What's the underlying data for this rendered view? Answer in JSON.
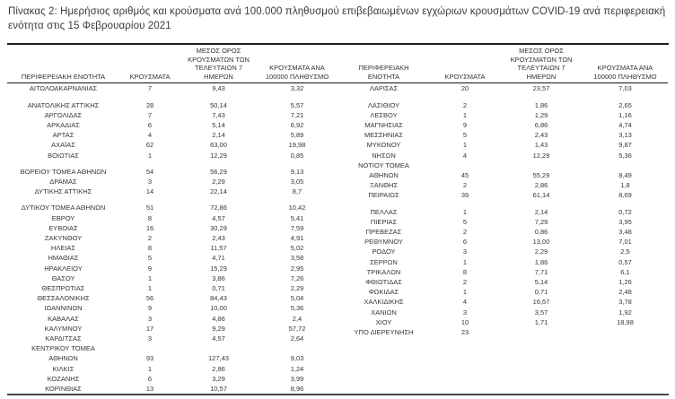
{
  "title": "Πίνακας 2: Ημερήσιος αριθμός και κρούσματα ανά 100.000 πληθυσμού επιβεβαιωμένων εγχώριων κρουσμάτων COVID-19 ανά περιφερειακή ενότητα στις 15 Φεβρουαρίου 2021",
  "colors": {
    "text": "#303030",
    "top_border": "#1d1d1d",
    "header_rule": "#141414",
    "bottom_border": "#474747",
    "background": "#ffffff"
  },
  "tables": [
    {
      "headers": {
        "region": "ΠΕΡΙΦΕΡΕΙΑΚΗ ΕΝΟΤΗΤΑ",
        "cases": "ΚΡΟΥΣΜΑΤΑ",
        "avg7": "ΜΕΣΟΣ ΟΡΟΣ\nΚΡΟΥΣΜΑΤΩΝ ΤΩΝ\nΤΕΛΕΥΤΑΙΩΝ 7\nΗΜΕΡΩΝ",
        "per100k": "ΚΡΟΥΣΜΑΤΑ ΑΝΑ\n100000 ΠΛΗΘΥΣΜΟ"
      },
      "rows": [
        {
          "region": "ΑΙΤΩΛΟΑΚΑΡΝΑΝΙΑΣ",
          "cases": "7",
          "avg7": "9,43",
          "per100k": "3,32"
        },
        {
          "region": "ΑΝΑΤΟΛΙΚΗΣ ΑΤΤΙΚΗΣ",
          "cases": "28",
          "avg7": "50,14",
          "per100k": "5,57",
          "gap_before": true
        },
        {
          "region": "ΑΡΓΟΛΙΔΑΣ",
          "cases": "7",
          "avg7": "7,43",
          "per100k": "7,21"
        },
        {
          "region": "ΑΡΚΑΔΙΑΣ",
          "cases": "6",
          "avg7": "5,14",
          "per100k": "6,92"
        },
        {
          "region": "ΑΡΤΑΣ",
          "cases": "4",
          "avg7": "2,14",
          "per100k": "5,89"
        },
        {
          "region": "ΑΧΑΪΑΣ",
          "cases": "62",
          "avg7": "63,00",
          "per100k": "19,98"
        },
        {
          "region": "ΒΟΙΩΤΙΑΣ",
          "cases": "1",
          "avg7": "12,29",
          "per100k": "0,85"
        },
        {
          "region": "ΒΟΡΕΙΟΥ ΤΟΜΕΑ ΑΘΗΝΩΝ",
          "cases": "54",
          "avg7": "56,29",
          "per100k": "9,13",
          "gap_before": true
        },
        {
          "region": "ΔΡΑΜΑΣ",
          "cases": "3",
          "avg7": "2,29",
          "per100k": "3,05"
        },
        {
          "region": "ΔΥΤΙΚΗΣ ΑΤΤΙΚΗΣ",
          "cases": "14",
          "avg7": "22,14",
          "per100k": "8,7"
        },
        {
          "region": "ΔΥΤΙΚΟΥ ΤΟΜΕΑ ΑΘΗΝΩΝ",
          "cases": "51",
          "avg7": "72,86",
          "per100k": "10,42",
          "gap_before": true
        },
        {
          "region": "ΕΒΡΟΥ",
          "cases": "8",
          "avg7": "4,57",
          "per100k": "5,41"
        },
        {
          "region": "ΕΥΒΟΙΑΣ",
          "cases": "16",
          "avg7": "30,29",
          "per100k": "7,59"
        },
        {
          "region": "ΖΑΚΥΝΘΟΥ",
          "cases": "2",
          "avg7": "2,43",
          "per100k": "4,91"
        },
        {
          "region": "ΗΛΕΙΑΣ",
          "cases": "8",
          "avg7": "11,57",
          "per100k": "5,02"
        },
        {
          "region": "ΗΜΑΘΙΑΣ",
          "cases": "5",
          "avg7": "4,71",
          "per100k": "3,58"
        },
        {
          "region": "ΗΡΑΚΛΕΙΟΥ",
          "cases": "9",
          "avg7": "15,29",
          "per100k": "2,95"
        },
        {
          "region": "ΘΑΣΟΥ",
          "cases": "1",
          "avg7": "3,86",
          "per100k": "7,26"
        },
        {
          "region": "ΘΕΣΠΡΩΤΙΑΣ",
          "cases": "1",
          "avg7": "0,71",
          "per100k": "2,29"
        },
        {
          "region": "ΘΕΣΣΑΛΟΝΙΚΗΣ",
          "cases": "56",
          "avg7": "84,43",
          "per100k": "5,04"
        },
        {
          "region": "ΙΩΑΝΝΙΝΩΝ",
          "cases": "9",
          "avg7": "10,00",
          "per100k": "5,36"
        },
        {
          "region": "ΚΑΒΑΛΑΣ",
          "cases": "3",
          "avg7": "4,86",
          "per100k": "2,4"
        },
        {
          "region": "ΚΑΛΥΜΝΟΥ",
          "cases": "17",
          "avg7": "9,29",
          "per100k": "57,72"
        },
        {
          "region": "ΚΑΡΔΙΤΣΑΣ",
          "cases": "3",
          "avg7": "4,57",
          "per100k": "2,64"
        },
        {
          "region": "ΚΕΝΤΡΙΚΟΥ ΤΟΜΕΑ\nΑΘΗΝΩΝ",
          "cases": "93",
          "avg7": "127,43",
          "per100k": "9,03"
        },
        {
          "region": "ΚΙΛΚΙΣ",
          "cases": "1",
          "avg7": "2,86",
          "per100k": "1,24"
        },
        {
          "region": "ΚΟΖΑΝΗΣ",
          "cases": "6",
          "avg7": "3,29",
          "per100k": "3,99"
        },
        {
          "region": "ΚΟΡΙΝΘΙΑΣ",
          "cases": "13",
          "avg7": "10,57",
          "per100k": "8,96"
        }
      ]
    },
    {
      "headers": {
        "region": "ΠΕΡΙΦΕΡΕΙΑΚΗ\nΕΝΟΤΗΤΑ",
        "cases": "ΚΡΟΥΣΜΑΤΑ",
        "avg7": "ΜΕΣΟΣ ΟΡΟΣ\nΚΡΟΥΣΜΑΤΩΝ ΤΩΝ\nΤΕΛΕΥΤΑΙΩΝ 7\nΗΜΕΡΩΝ",
        "per100k": "ΚΡΟΥΣΜΑΤΑ ΑΝΑ\n100000 ΠΛΗΘΥΣΜΟ"
      },
      "rows": [
        {
          "region": "ΛΑΡΙΣΑΣ",
          "cases": "20",
          "avg7": "23,57",
          "per100k": "7,03"
        },
        {
          "region": "ΛΑΣΙΘΙΟΥ",
          "cases": "2",
          "avg7": "1,86",
          "per100k": "2,65",
          "gap_before": true
        },
        {
          "region": "ΛΕΣΒΟΥ",
          "cases": "1",
          "avg7": "1,29",
          "per100k": "1,16"
        },
        {
          "region": "ΜΑΓΝΗΣΙΑΣ",
          "cases": "9",
          "avg7": "6,86",
          "per100k": "4,74"
        },
        {
          "region": "ΜΕΣΣΗΝΙΑΣ",
          "cases": "5",
          "avg7": "2,43",
          "per100k": "3,13"
        },
        {
          "region": "ΜΥΚΟΝΟΥ",
          "cases": "1",
          "avg7": "1,43",
          "per100k": "9,87"
        },
        {
          "region": "ΝΗΣΩΝ",
          "cases": "4",
          "avg7": "12,29",
          "per100k": "5,36"
        },
        {
          "region": "ΝΟΤΙΟΥ ΤΟΜΕΑ\nΑΘΗΝΩΝ",
          "cases": "45",
          "avg7": "55,29",
          "per100k": "8,49"
        },
        {
          "region": "ΞΑΝΘΗΣ",
          "cases": "2",
          "avg7": "2,86",
          "per100k": "1,8"
        },
        {
          "region": "ΠΕΙΡΑΙΩΣ",
          "cases": "39",
          "avg7": "61,14",
          "per100k": "8,69"
        },
        {
          "region": "ΠΕΛΛΑΣ",
          "cases": "1",
          "avg7": "2,14",
          "per100k": "0,72",
          "gap_before": true
        },
        {
          "region": "ΠΙΕΡΙΑΣ",
          "cases": "5",
          "avg7": "7,29",
          "per100k": "3,95"
        },
        {
          "region": "ΠΡΕΒΕΖΑΣ",
          "cases": "2",
          "avg7": "0,86",
          "per100k": "3,48"
        },
        {
          "region": "ΡΕΘΥΜΝΟΥ",
          "cases": "6",
          "avg7": "13,00",
          "per100k": "7,01"
        },
        {
          "region": "ΡΟΔΟΥ",
          "cases": "3",
          "avg7": "2,29",
          "per100k": "2,5"
        },
        {
          "region": "ΣΕΡΡΩΝ",
          "cases": "1",
          "avg7": "1,86",
          "per100k": "0,57"
        },
        {
          "region": "ΤΡΙΚΑΛΩΝ",
          "cases": "8",
          "avg7": "7,71",
          "per100k": "6,1"
        },
        {
          "region": "ΦΘΙΩΤΙΔΑΣ",
          "cases": "2",
          "avg7": "5,14",
          "per100k": "1,26"
        },
        {
          "region": "ΦΩΚΙΔΑΣ",
          "cases": "1",
          "avg7": "0,71",
          "per100k": "2,48"
        },
        {
          "region": "ΧΑΛΚΙΔΙΚΗΣ",
          "cases": "4",
          "avg7": "16,57",
          "per100k": "3,78"
        },
        {
          "region": "ΧΑΝΙΩΝ",
          "cases": "3",
          "avg7": "3,57",
          "per100k": "1,92"
        },
        {
          "region": "ΧΙΟΥ",
          "cases": "10",
          "avg7": "1,71",
          "per100k": "18,98"
        },
        {
          "region": "ΥΠΟ ΔΙΕΡΕΥΝΗΣΗ",
          "cases": "23",
          "avg7": "",
          "per100k": ""
        }
      ]
    }
  ]
}
